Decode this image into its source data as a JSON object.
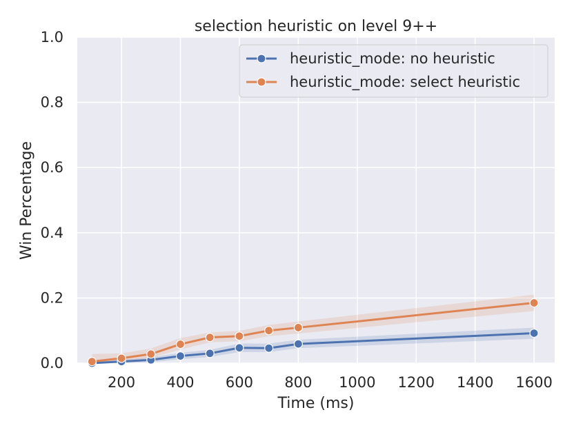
{
  "chart_data": {
    "type": "line",
    "title": "selection heuristic on level 9++",
    "xlabel": "Time (ms)",
    "ylabel": "Win Percentage",
    "xlim": [
      50,
      1670
    ],
    "ylim": [
      0.0,
      1.0
    ],
    "xticks": [
      200,
      400,
      600,
      800,
      1000,
      1200,
      1400,
      1600
    ],
    "yticks": [
      0.0,
      0.2,
      0.4,
      0.6,
      0.8,
      1.0
    ],
    "xtick_labels": [
      "200",
      "400",
      "600",
      "800",
      "1000",
      "1200",
      "1400",
      "1600"
    ],
    "ytick_labels": [
      "0.0",
      "0.2",
      "0.4",
      "0.6",
      "0.8",
      "1.0"
    ],
    "grid": true,
    "legend_position": "top-right",
    "x": [
      100,
      200,
      300,
      400,
      500,
      600,
      700,
      800,
      1600
    ],
    "series": [
      {
        "name": "heuristic_mode: no heuristic",
        "color": "#4c72b0",
        "values": [
          0.0,
          0.005,
          0.01,
          0.022,
          0.03,
          0.047,
          0.046,
          0.059,
          0.092
        ],
        "ci_low": [
          0.0,
          0.0,
          0.003,
          0.012,
          0.019,
          0.034,
          0.034,
          0.046,
          0.075
        ],
        "ci_high": [
          0.004,
          0.01,
          0.018,
          0.032,
          0.041,
          0.06,
          0.06,
          0.072,
          0.109
        ]
      },
      {
        "name": "heuristic_mode: select heuristic",
        "color": "#dd8452",
        "values": [
          0.005,
          0.015,
          0.028,
          0.058,
          0.079,
          0.083,
          0.1,
          0.109,
          0.185
        ],
        "ci_low": [
          0.0,
          0.007,
          0.016,
          0.042,
          0.064,
          0.067,
          0.083,
          0.091,
          0.16
        ],
        "ci_high": [
          0.028,
          0.03,
          0.045,
          0.077,
          0.094,
          0.099,
          0.117,
          0.128,
          0.21
        ]
      }
    ]
  }
}
